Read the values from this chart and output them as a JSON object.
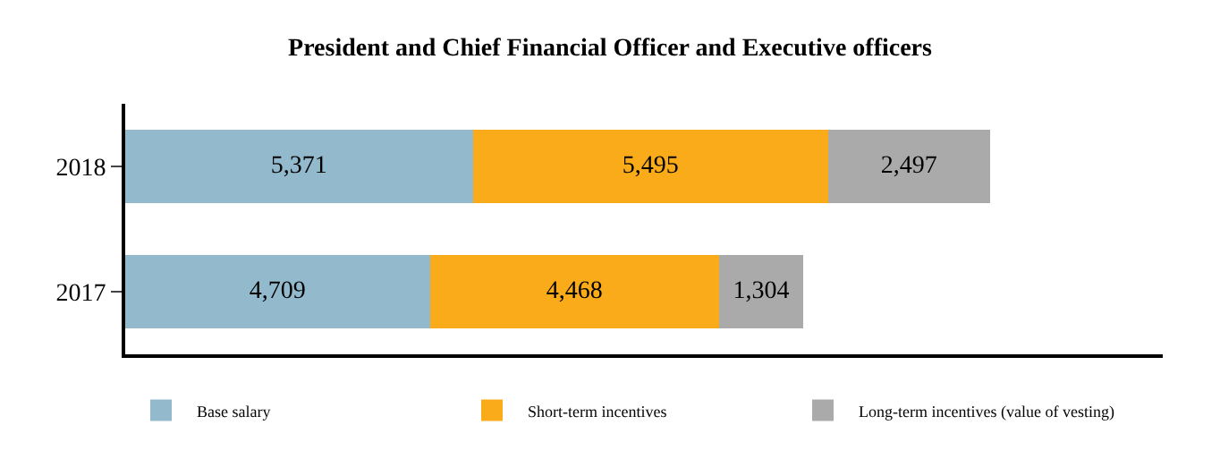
{
  "chart_data": {
    "type": "bar",
    "orientation": "horizontal",
    "stacked": true,
    "title": "President and Chief Financial Officer and Executive officers",
    "categories": [
      "2018",
      "2017"
    ],
    "series": [
      {
        "name": "Base salary",
        "color": "#93b9cc",
        "values": [
          5371,
          4709
        ],
        "value_labels": [
          "5,371",
          "4,709"
        ]
      },
      {
        "name": "Short-term incentives",
        "color": "#f9ab1a",
        "values": [
          5495,
          4468
        ],
        "value_labels": [
          "5,495",
          "4,468"
        ]
      },
      {
        "name": "Long-term incentives (value of vesting)",
        "color": "#aaaaaa",
        "values": [
          2497,
          1304
        ],
        "value_labels": [
          "2,497",
          "1,304"
        ]
      }
    ],
    "tick_labels": "y",
    "legend": "bottom"
  }
}
